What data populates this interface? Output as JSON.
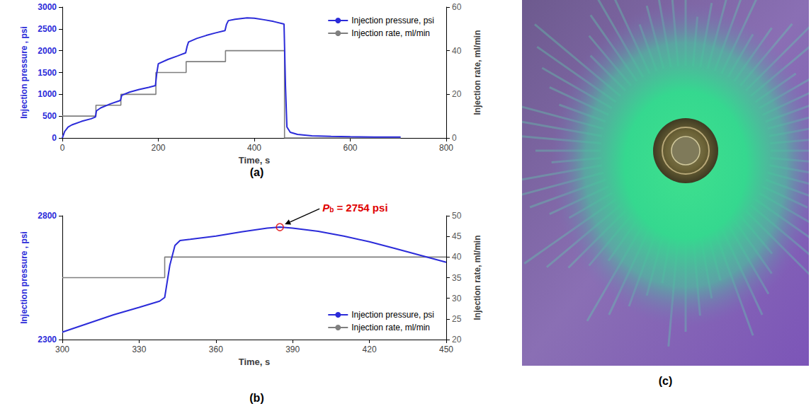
{
  "chart_data": [
    {
      "type": "line",
      "title": "(a)",
      "x_label": "Time, s",
      "y_label": "Injection pressure , psi",
      "y2_label": "Injection rate, ml/min",
      "xlim": [
        0,
        800
      ],
      "xticks": [
        0,
        200,
        400,
        600,
        800
      ],
      "ylim": [
        0,
        3000
      ],
      "yticks": [
        0,
        500,
        1000,
        1500,
        2000,
        2500,
        3000
      ],
      "y2lim": [
        0,
        60
      ],
      "y2ticks": [
        0,
        20,
        40,
        60
      ],
      "grid": false,
      "legend": "upper right",
      "series": [
        {
          "name": "Injection pressure, psi",
          "color": "#2b2bd9",
          "x": [
            0,
            5,
            12,
            20,
            40,
            60,
            69,
            71,
            80,
            100,
            121,
            124,
            140,
            160,
            180,
            194,
            197,
            200,
            220,
            240,
            257,
            260,
            263,
            280,
            300,
            320,
            339,
            342,
            346,
            360,
            385,
            400,
            420,
            440,
            462,
            465,
            468,
            475,
            490,
            520,
            560,
            600,
            650,
            705
          ],
          "values": [
            0,
            150,
            250,
            300,
            380,
            440,
            480,
            620,
            690,
            780,
            860,
            980,
            1050,
            1110,
            1160,
            1200,
            1500,
            1700,
            1800,
            1880,
            1950,
            2100,
            2200,
            2280,
            2350,
            2410,
            2460,
            2600,
            2690,
            2720,
            2754,
            2745,
            2710,
            2670,
            2610,
            1200,
            250,
            130,
            80,
            50,
            35,
            28,
            22,
            20
          ]
        },
        {
          "name": "Injection rate, ml/min",
          "color": "#7f7f7f",
          "axis": "y2",
          "x": [
            0,
            70,
            70,
            122,
            122,
            195,
            195,
            258,
            258,
            340,
            340,
            463,
            463,
            705
          ],
          "values": [
            10,
            10,
            15,
            15,
            20,
            20,
            30,
            30,
            35,
            35,
            40,
            40,
            0,
            0
          ]
        }
      ]
    },
    {
      "type": "line",
      "title": "(b)",
      "x_label": "Time, s",
      "y_label": "Injection pressure , psi",
      "y2_label": "Injection rate, ml/min",
      "xlim": [
        300,
        450
      ],
      "xticks": [
        300,
        330,
        360,
        390,
        420,
        450
      ],
      "ylim": [
        2300,
        2800
      ],
      "yticks": [
        2300,
        2800
      ],
      "y2lim": [
        20,
        50
      ],
      "y2ticks": [
        20,
        25,
        30,
        35,
        40,
        45,
        50
      ],
      "grid": false,
      "legend": "lower right",
      "series": [
        {
          "name": "Injection pressure, psi",
          "color": "#2b2bd9",
          "x": [
            300,
            310,
            320,
            330,
            338,
            340,
            342,
            344,
            346,
            350,
            360,
            370,
            380,
            385,
            390,
            400,
            410,
            420,
            430,
            440,
            450
          ],
          "values": [
            2330,
            2365,
            2400,
            2430,
            2455,
            2470,
            2600,
            2680,
            2700,
            2705,
            2718,
            2735,
            2750,
            2754,
            2750,
            2737,
            2718,
            2695,
            2668,
            2640,
            2612
          ]
        },
        {
          "name": "Injection rate, ml/min",
          "color": "#7f7f7f",
          "axis": "y2",
          "x": [
            300,
            340,
            340,
            450
          ],
          "values": [
            35,
            35,
            40,
            40
          ]
        }
      ],
      "annotations": [
        {
          "x": 385,
          "y": 2754,
          "symbol": "P",
          "subscript": "b",
          "text": " = 2754 psi",
          "color": "#e00000",
          "marker": "circle"
        }
      ]
    },
    {
      "type": "image",
      "title": "(c)"
    }
  ]
}
